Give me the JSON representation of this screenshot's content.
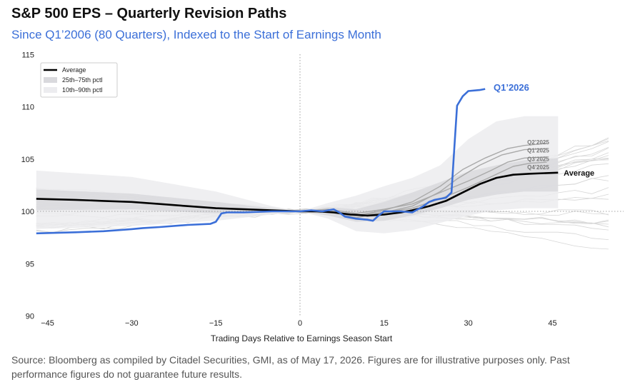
{
  "title": "S&P 500 EPS – Quarterly Revision Paths",
  "subtitle": "Since Q1’2006 (80 Quarters), Indexed to the Start of Earnings Month",
  "source": "Source: Bloomberg as compiled by Citadel Securities, GMI, as of May 17, 2026. Figures are for illustrative purposes only. Past performance figures do not guarantee future results.",
  "colors": {
    "highlight": "#3b6fd8",
    "average": "#000000",
    "iqr_band": "#d9d9dd",
    "decile_band": "#ececef",
    "history": "#d6d6d6",
    "recent": "#a9a9a9"
  },
  "chart_data": {
    "type": "line",
    "title": "S&P 500 EPS – Quarterly Revision Paths",
    "subtitle": "Since Q1’2006 (80 Quarters), Indexed to the Start of Earnings Month",
    "xlabel": "Trading Days Relative to Earnings Season Start",
    "ylabel": "",
    "xlim": [
      -47,
      58
    ],
    "ylim": [
      90,
      115
    ],
    "xticks": [
      -45,
      -30,
      -15,
      0,
      15,
      30,
      45
    ],
    "yticks": [
      90,
      95,
      100,
      105,
      110,
      115
    ],
    "grid": false,
    "reference_lines": [
      {
        "axis": "x",
        "value": 0,
        "style": "dotted"
      },
      {
        "axis": "y",
        "value": 100,
        "style": "dotted"
      }
    ],
    "legend": {
      "position": "top-left",
      "entries": [
        {
          "label": "Average",
          "kind": "line"
        },
        {
          "label": "25th–75th pctl",
          "kind": "band"
        },
        {
          "label": "10th–90th pctl",
          "kind": "band"
        }
      ]
    },
    "bands": [
      {
        "name": "10th–90th pctl",
        "points": [
          [
            -47,
            98.3,
            103.9
          ],
          [
            -30,
            98.6,
            103.3
          ],
          [
            -15,
            99.1,
            101.9
          ],
          [
            -5,
            99.7,
            100.5
          ],
          [
            0,
            100,
            100
          ],
          [
            5,
            99.3,
            100.8
          ],
          [
            10,
            98.1,
            101.5
          ],
          [
            15,
            97.9,
            102.4
          ],
          [
            20,
            98.2,
            103.2
          ],
          [
            25,
            98.9,
            104.4
          ],
          [
            30,
            99.6,
            106.9
          ],
          [
            35,
            100.1,
            108.6
          ],
          [
            40,
            100.3,
            109.1
          ],
          [
            46,
            100.3,
            109.1
          ]
        ]
      },
      {
        "name": "25th–75th pctl",
        "points": [
          [
            -47,
            100.1,
            102.1
          ],
          [
            -30,
            100.2,
            101.7
          ],
          [
            -15,
            99.8,
            100.9
          ],
          [
            -5,
            99.9,
            100.3
          ],
          [
            0,
            100,
            100
          ],
          [
            5,
            99.6,
            100.4
          ],
          [
            10,
            99,
            100.2
          ],
          [
            15,
            99.1,
            100.9
          ],
          [
            20,
            99.6,
            101.8
          ],
          [
            25,
            100.3,
            102.8
          ],
          [
            30,
            101.1,
            103.8
          ],
          [
            35,
            101.6,
            104.4
          ],
          [
            40,
            101.9,
            104.9
          ],
          [
            46,
            101.9,
            105.1
          ]
        ]
      }
    ],
    "series": [
      {
        "name": "Q1’2026",
        "role": "highlight",
        "points": [
          [
            -47,
            97.9
          ],
          [
            -40,
            98
          ],
          [
            -35,
            98.1
          ],
          [
            -30,
            98.3
          ],
          [
            -28,
            98.4
          ],
          [
            -25,
            98.5
          ],
          [
            -20,
            98.7
          ],
          [
            -16,
            98.8
          ],
          [
            -15,
            99
          ],
          [
            -14,
            99.8
          ],
          [
            -13,
            99.9
          ],
          [
            -10,
            99.9
          ],
          [
            -5,
            100
          ],
          [
            0,
            100
          ],
          [
            2,
            100.1
          ],
          [
            4,
            100
          ],
          [
            6,
            100.2
          ],
          [
            7,
            99.9
          ],
          [
            8,
            99.5
          ],
          [
            10,
            99.3
          ],
          [
            12,
            99.2
          ],
          [
            13,
            99.1
          ],
          [
            14,
            99.6
          ],
          [
            15,
            100
          ],
          [
            18,
            100
          ],
          [
            20,
            99.9
          ],
          [
            21,
            100.2
          ],
          [
            22,
            100.5
          ],
          [
            23,
            100.9
          ],
          [
            24,
            101.1
          ],
          [
            25,
            101.2
          ],
          [
            26,
            101.3
          ],
          [
            27,
            101.8
          ],
          [
            27.5,
            106
          ],
          [
            28,
            110.1
          ],
          [
            29,
            111
          ],
          [
            30,
            111.5
          ],
          [
            32,
            111.6
          ],
          [
            33,
            111.7
          ]
        ]
      },
      {
        "name": "Average",
        "role": "average",
        "points": [
          [
            -47,
            101.2
          ],
          [
            -40,
            101.1
          ],
          [
            -35,
            101
          ],
          [
            -30,
            100.9
          ],
          [
            -25,
            100.7
          ],
          [
            -20,
            100.5
          ],
          [
            -15,
            100.3
          ],
          [
            -10,
            100.2
          ],
          [
            -5,
            100.1
          ],
          [
            0,
            100
          ],
          [
            3,
            100
          ],
          [
            6,
            99.9
          ],
          [
            9,
            99.7
          ],
          [
            12,
            99.6
          ],
          [
            15,
            99.7
          ],
          [
            18,
            99.9
          ],
          [
            20,
            100.1
          ],
          [
            23,
            100.5
          ],
          [
            26,
            101
          ],
          [
            29,
            101.8
          ],
          [
            32,
            102.6
          ],
          [
            35,
            103.2
          ],
          [
            38,
            103.5
          ],
          [
            41,
            103.6
          ],
          [
            46,
            103.7
          ]
        ]
      },
      {
        "name": "Q2’2025",
        "role": "recent",
        "points": [
          [
            0,
            100
          ],
          [
            5,
            100.1
          ],
          [
            10,
            99.6
          ],
          [
            15,
            100.1
          ],
          [
            20,
            100.9
          ],
          [
            25,
            102.4
          ],
          [
            29,
            104
          ],
          [
            33,
            105.1
          ],
          [
            37,
            106
          ],
          [
            40,
            106.3
          ],
          [
            44,
            106.5
          ]
        ]
      },
      {
        "name": "Q1’2025",
        "role": "recent",
        "points": [
          [
            0,
            100
          ],
          [
            5,
            100
          ],
          [
            10,
            99.4
          ],
          [
            15,
            99.9
          ],
          [
            20,
            100.5
          ],
          [
            25,
            101.9
          ],
          [
            28,
            103.1
          ],
          [
            32,
            104.4
          ],
          [
            36,
            105.4
          ],
          [
            40,
            105.9
          ],
          [
            44,
            106
          ]
        ]
      },
      {
        "name": "Q3’2025",
        "role": "recent",
        "points": [
          [
            0,
            100
          ],
          [
            5,
            100.2
          ],
          [
            10,
            99.8
          ],
          [
            15,
            100.2
          ],
          [
            20,
            100.7
          ],
          [
            25,
            101.8
          ],
          [
            30,
            102.9
          ],
          [
            34,
            103.9
          ],
          [
            37,
            104.7
          ],
          [
            40,
            105.1
          ],
          [
            44,
            105.2
          ]
        ]
      },
      {
        "name": "Q4’2025",
        "role": "recent",
        "points": [
          [
            0,
            100
          ],
          [
            5,
            99.9
          ],
          [
            10,
            99.6
          ],
          [
            15,
            99.9
          ],
          [
            20,
            100.3
          ],
          [
            25,
            101.2
          ],
          [
            30,
            102.3
          ],
          [
            34,
            103.3
          ],
          [
            38,
            104.3
          ],
          [
            41,
            104.6
          ],
          [
            44,
            104.7
          ]
        ]
      }
    ],
    "annotations": [
      {
        "text": "Q1’2026",
        "x": 34.5,
        "y": 111.8,
        "series": "Q1’2026"
      },
      {
        "text": "Average",
        "x": 47,
        "y": 103.7,
        "series": "Average"
      },
      {
        "text": "Q2’2025",
        "x": 40.5,
        "y": 106.7,
        "series": "Q2’2025"
      },
      {
        "text": "Q1’2025",
        "x": 40.5,
        "y": 105.9,
        "series": "Q1’2025"
      },
      {
        "text": "Q3’2025",
        "x": 40.5,
        "y": 105.1,
        "series": "Q3’2025"
      },
      {
        "text": "Q4’2025",
        "x": 40.5,
        "y": 104.3,
        "series": "Q4’2025"
      }
    ]
  }
}
